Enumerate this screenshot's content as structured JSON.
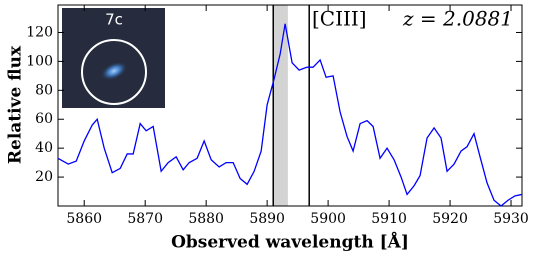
{
  "chart_data": {
    "type": "line",
    "x": [
      5855.7,
      5857.38,
      5858.69,
      5860.0,
      5861.31,
      5862.13,
      5863.28,
      5864.59,
      5865.9,
      5867.05,
      5868.03,
      5869.18,
      5870.16,
      5871.31,
      5872.62,
      5873.77,
      5875.08,
      5876.23,
      5877.21,
      5878.52,
      5879.67,
      5880.82,
      5882.13,
      5883.28,
      5884.43,
      5885.57,
      5886.72,
      5887.87,
      5889.02,
      5890.0,
      5891.15,
      5892.13,
      5892.95,
      5894.1,
      5895.25,
      5896.56,
      5897.54,
      5898.69,
      5899.67,
      5900.82,
      5901.97,
      5903.11,
      5904.1,
      5905.25,
      5906.39,
      5907.38,
      5908.52,
      5909.67,
      5910.82,
      5911.97,
      5912.95,
      5914.1,
      5915.08,
      5916.23,
      5917.38,
      5918.52,
      5919.51,
      5920.66,
      5921.8,
      5922.79,
      5923.93,
      5924.92,
      5926.07,
      5927.21,
      5928.36,
      5929.51,
      5930.66,
      5931.8
    ],
    "values": [
      33,
      29,
      31,
      45,
      56,
      60,
      40,
      23,
      26,
      36,
      36,
      57,
      52,
      55,
      24,
      30,
      34,
      25,
      30,
      33,
      45,
      32,
      27,
      30,
      30,
      19,
      15,
      24,
      38,
      70,
      88,
      105,
      126,
      99,
      94,
      96,
      96,
      101,
      89,
      90,
      65,
      48,
      38,
      57,
      59,
      55,
      33,
      40,
      32,
      20,
      8,
      14,
      21,
      47,
      54,
      47,
      24,
      29,
      38,
      41,
      50,
      34,
      16,
      4,
      0,
      4,
      7,
      8
    ],
    "color": "#0000ff",
    "xlabel": "Observed wavelength [Å]",
    "ylabel": "Relative flux",
    "xlim": [
      5855.7,
      5931.8
    ],
    "ylim": [
      0,
      139
    ],
    "xticks": [
      5860,
      5870,
      5880,
      5890,
      5900,
      5910,
      5920,
      5930
    ],
    "yticks": [
      20,
      40,
      60,
      80,
      100,
      120
    ],
    "vlines": [
      5891.0,
      5896.9
    ],
    "span": [
      5891.1,
      5893.4
    ],
    "annotations": [
      "[CIII]",
      "z = 2.0881"
    ],
    "inset_label": "7c"
  }
}
